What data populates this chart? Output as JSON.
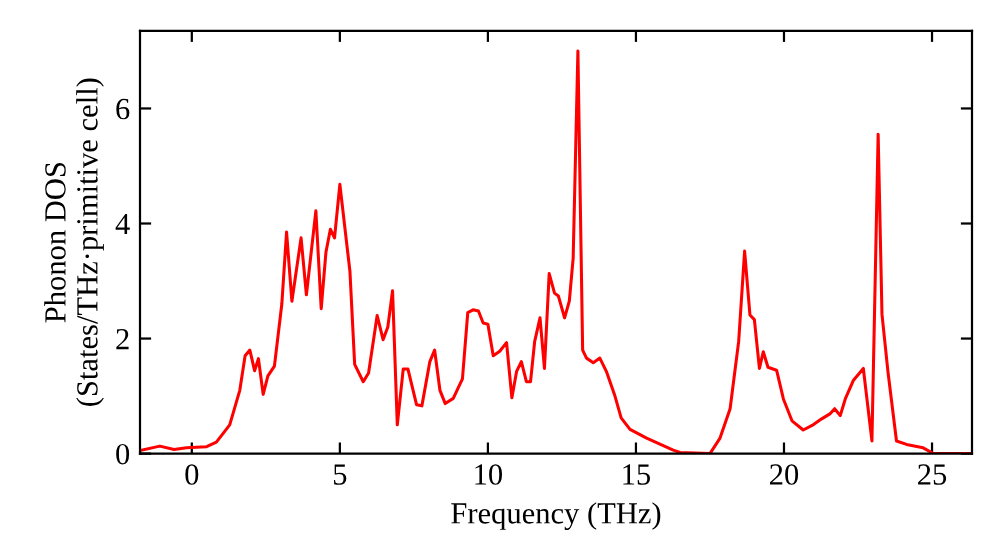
{
  "chart_data": {
    "type": "line",
    "xlabel": "Frequency (THz)",
    "ylabel": "Phonon DOS\n(States/THz·primitive cell)",
    "xlim": [
      -1.75,
      26.35
    ],
    "ylim": [
      0,
      7.35
    ],
    "xticks": [
      0,
      5,
      10,
      15,
      20,
      25
    ],
    "yticks": [
      0,
      2,
      4,
      6
    ],
    "grid": false,
    "marker": "none",
    "line_style": "solid",
    "series": [
      {
        "color": "#ff0000",
        "x": [
          -1.7,
          -1.08,
          -0.6,
          -0.18,
          0.5,
          0.83,
          1.28,
          1.62,
          1.8,
          1.96,
          2.12,
          2.25,
          2.41,
          2.57,
          2.79,
          3.04,
          3.2,
          3.38,
          3.69,
          3.87,
          4.19,
          4.37,
          4.53,
          4.68,
          4.82,
          5.0,
          5.34,
          5.5,
          5.79,
          5.97,
          6.26,
          6.46,
          6.62,
          6.78,
          6.94,
          7.14,
          7.3,
          7.59,
          7.77,
          8.04,
          8.2,
          8.38,
          8.56,
          8.83,
          9.14,
          9.32,
          9.5,
          9.68,
          9.84,
          10.0,
          10.18,
          10.4,
          10.63,
          10.81,
          10.97,
          11.13,
          11.3,
          11.44,
          11.58,
          11.76,
          11.91,
          12.07,
          12.25,
          12.38,
          12.59,
          12.75,
          12.88,
          13.04,
          13.2,
          13.33,
          13.56,
          13.78,
          14.0,
          14.28,
          14.5,
          14.8,
          15.36,
          16.26,
          16.49,
          17.5,
          17.84,
          18.18,
          18.47,
          18.67,
          18.85,
          19.0,
          19.17,
          19.3,
          19.46,
          19.75,
          19.98,
          20.27,
          20.65,
          20.95,
          21.26,
          21.55,
          21.71,
          21.9,
          22.07,
          22.34,
          22.68,
          22.97,
          23.18,
          23.31,
          23.51,
          23.8,
          24.14,
          24.7,
          25.05,
          26.3
        ],
        "values": [
          0.06,
          0.13,
          0.07,
          0.1,
          0.12,
          0.2,
          0.5,
          1.1,
          1.7,
          1.8,
          1.44,
          1.65,
          1.03,
          1.35,
          1.52,
          2.6,
          3.85,
          2.65,
          3.75,
          2.76,
          4.22,
          2.52,
          3.5,
          3.9,
          3.75,
          4.68,
          3.17,
          1.55,
          1.25,
          1.4,
          2.4,
          1.98,
          2.2,
          2.83,
          0.5,
          1.47,
          1.47,
          0.85,
          0.83,
          1.6,
          1.8,
          1.1,
          0.87,
          0.96,
          1.3,
          2.45,
          2.5,
          2.48,
          2.27,
          2.25,
          1.7,
          1.78,
          1.93,
          0.97,
          1.43,
          1.6,
          1.25,
          1.25,
          1.95,
          2.36,
          1.48,
          3.13,
          2.79,
          2.74,
          2.36,
          2.65,
          3.4,
          7.0,
          1.8,
          1.66,
          1.58,
          1.66,
          1.43,
          1.02,
          0.62,
          0.42,
          0.27,
          0.06,
          0.02,
          0,
          0.27,
          0.78,
          1.95,
          3.52,
          2.41,
          2.33,
          1.48,
          1.77,
          1.5,
          1.45,
          0.95,
          0.57,
          0.41,
          0.49,
          0.6,
          0.69,
          0.78,
          0.66,
          0.95,
          1.27,
          1.48,
          0.22,
          5.55,
          2.42,
          1.43,
          0.22,
          0.16,
          0.1,
          0,
          0
        ]
      }
    ]
  }
}
